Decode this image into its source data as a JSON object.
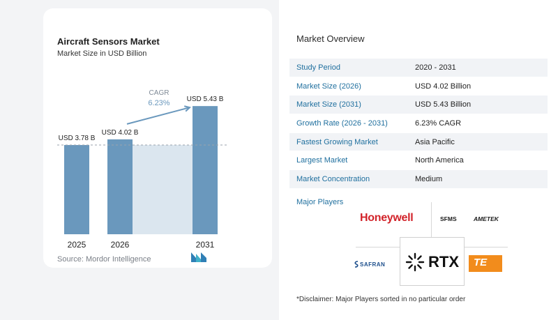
{
  "chart_data": {
    "type": "bar",
    "title": "Aircraft Sensors Market",
    "subtitle": "Market Size in USD Billion",
    "categories": [
      "2025",
      "2026",
      "2031"
    ],
    "values": [
      3.78,
      4.02,
      5.43
    ],
    "data_labels": [
      "USD 3.78 B",
      "USD 4.02 B",
      "USD 5.43 B"
    ],
    "cagr_label": "CAGR",
    "cagr_value": "6.23%",
    "ylim": [
      0,
      5.7
    ],
    "grid": false,
    "bar_color": "#6a98bd",
    "band_color": "#dbe6ef",
    "source": "Source: Mordor Intelligence"
  },
  "overview": {
    "title": "Market Overview",
    "rows": [
      {
        "label": "Study Period",
        "value": "2020 - 2031"
      },
      {
        "label": "Market Size (2026)",
        "value": "USD 4.02 Billion"
      },
      {
        "label": "Market Size (2031)",
        "value": "USD 5.43 Billion"
      },
      {
        "label": "Growth Rate (2026 - 2031)",
        "value": "6.23% CAGR"
      },
      {
        "label": "Fastest Growing Market",
        "value": "Asia Pacific"
      },
      {
        "label": "Largest Market",
        "value": "North America"
      },
      {
        "label": "Market Concentration",
        "value": "Medium"
      }
    ]
  },
  "players": {
    "title": "Major Players",
    "logos": [
      "Honeywell",
      "SFMS",
      "AMETEK",
      "SAFRAN",
      "RTX",
      "TE"
    ],
    "disclaimer": "*Disclaimer: Major Players sorted in no particular order"
  }
}
